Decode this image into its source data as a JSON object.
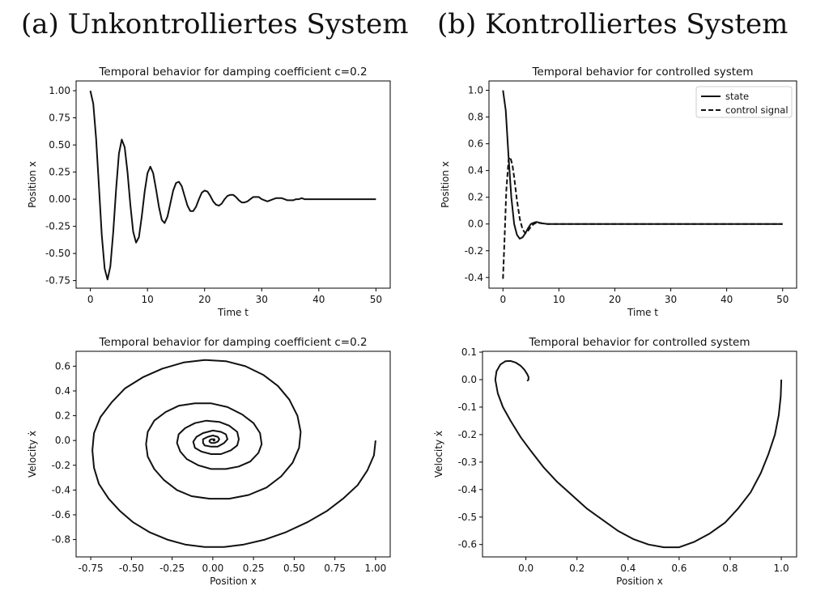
{
  "headings": {
    "left": "(a) Unkontrolliertes System",
    "right": "(b) Kontrolliertes System"
  },
  "colors": {
    "line": "#111111",
    "axis": "#000000",
    "background": "#ffffff"
  },
  "chart_data": [
    {
      "type": "line",
      "title": "Temporal behavior for  damping coefficient c=0.2",
      "xlabel": "Time t",
      "ylabel": "Position x",
      "xlim": [
        -2.5,
        52.5
      ],
      "ylim": [
        -0.82,
        1.09
      ],
      "xticks": [
        "0",
        "10",
        "20",
        "30",
        "40",
        "50"
      ],
      "yticks": [
        "-0.75",
        "-0.50",
        "-0.25",
        "0.00",
        "0.25",
        "0.50",
        "0.75",
        "1.00"
      ],
      "series": [
        {
          "style": "solid",
          "x": [
            0,
            0.5,
            1,
            1.5,
            2,
            2.5,
            3,
            3.5,
            4,
            4.5,
            5,
            5.5,
            6,
            6.5,
            7,
            7.5,
            8,
            8.5,
            9,
            9.5,
            10,
            10.5,
            11,
            11.5,
            12,
            12.5,
            13,
            13.5,
            14,
            14.5,
            15,
            15.5,
            16,
            16.5,
            17,
            17.5,
            18,
            18.5,
            19,
            19.5,
            20,
            20.5,
            21,
            21.5,
            22,
            22.5,
            23,
            23.5,
            24,
            24.5,
            25,
            25.5,
            26,
            26.5,
            27,
            27.5,
            28,
            28.5,
            29,
            29.5,
            30,
            30.5,
            31,
            31.5,
            32,
            32.5,
            33,
            33.5,
            34,
            34.5,
            35,
            35.5,
            36,
            36.5,
            37,
            37.5,
            38,
            38.5,
            39,
            39.5,
            40,
            40.5,
            41,
            41.5,
            42,
            42.5,
            43,
            43.5,
            44,
            44.5,
            45,
            45.5,
            46,
            46.5,
            47,
            47.5,
            48,
            48.5,
            49,
            49.5,
            50
          ],
          "y": [
            1.0,
            0.88,
            0.56,
            0.12,
            -0.33,
            -0.64,
            -0.74,
            -0.62,
            -0.3,
            0.09,
            0.42,
            0.55,
            0.48,
            0.25,
            -0.05,
            -0.3,
            -0.4,
            -0.35,
            -0.16,
            0.07,
            0.24,
            0.3,
            0.24,
            0.09,
            -0.07,
            -0.19,
            -0.22,
            -0.16,
            -0.04,
            0.08,
            0.15,
            0.16,
            0.12,
            0.03,
            -0.06,
            -0.11,
            -0.11,
            -0.07,
            0.0,
            0.06,
            0.08,
            0.07,
            0.03,
            -0.02,
            -0.05,
            -0.06,
            -0.04,
            0.0,
            0.03,
            0.04,
            0.04,
            0.02,
            -0.01,
            -0.03,
            -0.03,
            -0.02,
            0.0,
            0.02,
            0.02,
            0.02,
            0.0,
            -0.01,
            -0.02,
            -0.01,
            0.0,
            0.01,
            0.01,
            0.01,
            0.0,
            -0.01,
            -0.01,
            -0.01,
            0.0,
            0.0,
            0.01,
            0.0,
            0.0,
            0.0,
            0.0,
            0.0,
            0.0,
            0.0,
            0.0,
            0.0,
            0.0,
            0.0,
            0.0,
            0.0,
            0.0,
            0.0,
            0.0,
            0.0,
            0.0,
            0.0,
            0.0,
            0.0,
            0.0,
            0.0,
            0.0,
            0.0,
            0.0
          ]
        }
      ]
    },
    {
      "type": "line",
      "title": "Temporal behavior for controlled system",
      "xlabel": "Time t",
      "ylabel": "Position x",
      "xlim": [
        -2.5,
        52.5
      ],
      "ylim": [
        -0.48,
        1.07
      ],
      "xticks": [
        "0",
        "10",
        "20",
        "30",
        "40",
        "50"
      ],
      "yticks": [
        "-0.4",
        "-0.2",
        "0.0",
        "0.2",
        "0.4",
        "0.6",
        "0.8",
        "1.0"
      ],
      "legend": "top-right",
      "series": [
        {
          "name": "state",
          "style": "solid",
          "x": [
            0,
            0.5,
            1,
            1.5,
            2,
            2.5,
            3,
            3.5,
            4,
            4.5,
            5,
            5.5,
            6,
            6.5,
            7,
            8,
            9,
            10,
            15,
            20,
            30,
            40,
            50
          ],
          "y": [
            1.0,
            0.85,
            0.5,
            0.2,
            0.0,
            -0.08,
            -0.11,
            -0.1,
            -0.07,
            -0.03,
            0.0,
            0.01,
            0.015,
            0.01,
            0.005,
            0.0,
            0.0,
            0.0,
            0.0,
            0.0,
            0.0,
            0.0,
            0.0
          ]
        },
        {
          "name": "control signal",
          "style": "dashed",
          "x": [
            0,
            0.3,
            0.6,
            1,
            1.3,
            1.7,
            2,
            2.5,
            3,
            3.5,
            4,
            4.5,
            5,
            5.5,
            6,
            7,
            8,
            9,
            10,
            15,
            20,
            30,
            40,
            50
          ],
          "y": [
            -0.41,
            -0.1,
            0.25,
            0.48,
            0.5,
            0.44,
            0.35,
            0.18,
            0.04,
            -0.04,
            -0.07,
            -0.05,
            -0.02,
            0.0,
            0.01,
            0.005,
            0.0,
            0.0,
            0.0,
            0.0,
            0.0,
            0.0,
            0.0,
            0.0
          ]
        }
      ]
    },
    {
      "type": "line",
      "title": "Temporal behavior for  damping coefficient c=0.2",
      "xlabel": "Position x",
      "ylabel": "Velocity ẋ",
      "xlim": [
        -0.84,
        1.09
      ],
      "ylim": [
        -0.94,
        0.72
      ],
      "xticks": [
        "-0.75",
        "-0.50",
        "-0.25",
        "0.00",
        "0.25",
        "0.50",
        "0.75",
        "1.00"
      ],
      "yticks": [
        "-0.8",
        "-0.6",
        "-0.4",
        "-0.2",
        "0.0",
        "0.2",
        "0.4",
        "0.6"
      ],
      "series": [
        {
          "style": "solid",
          "x": [
            1.0,
            0.99,
            0.95,
            0.89,
            0.8,
            0.7,
            0.58,
            0.45,
            0.32,
            0.19,
            0.07,
            -0.05,
            -0.17,
            -0.28,
            -0.39,
            -0.49,
            -0.57,
            -0.64,
            -0.7,
            -0.73,
            -0.74,
            -0.73,
            -0.69,
            -0.62,
            -0.54,
            -0.43,
            -0.31,
            -0.18,
            -0.05,
            0.08,
            0.2,
            0.31,
            0.4,
            0.47,
            0.52,
            0.54,
            0.53,
            0.49,
            0.42,
            0.33,
            0.22,
            0.1,
            -0.02,
            -0.13,
            -0.22,
            -0.3,
            -0.36,
            -0.4,
            -0.41,
            -0.4,
            -0.36,
            -0.29,
            -0.21,
            -0.11,
            -0.01,
            0.09,
            0.18,
            0.25,
            0.29,
            0.3,
            0.28,
            0.23,
            0.16,
            0.08,
            -0.01,
            -0.09,
            -0.16,
            -0.2,
            -0.22,
            -0.21,
            -0.17,
            -0.11,
            -0.04,
            0.04,
            0.1,
            0.15,
            0.16,
            0.15,
            0.11,
            0.05,
            -0.01,
            -0.07,
            -0.11,
            -0.12,
            -0.1,
            -0.06,
            0.0,
            0.05,
            0.08,
            0.09,
            0.07,
            0.03,
            -0.01,
            -0.05,
            -0.06,
            -0.06,
            -0.03,
            0.0,
            0.03,
            0.04,
            0.03,
            0.01,
            -0.01,
            -0.02,
            -0.02,
            -0.01,
            0.0,
            0.01,
            0.01,
            0.0
          ],
          "y": [
            0.0,
            -0.12,
            -0.24,
            -0.36,
            -0.47,
            -0.57,
            -0.66,
            -0.74,
            -0.8,
            -0.84,
            -0.86,
            -0.86,
            -0.84,
            -0.8,
            -0.74,
            -0.66,
            -0.57,
            -0.47,
            -0.35,
            -0.22,
            -0.08,
            0.06,
            0.19,
            0.31,
            0.42,
            0.51,
            0.58,
            0.63,
            0.65,
            0.64,
            0.6,
            0.53,
            0.44,
            0.33,
            0.2,
            0.07,
            -0.06,
            -0.18,
            -0.29,
            -0.38,
            -0.44,
            -0.47,
            -0.47,
            -0.45,
            -0.4,
            -0.32,
            -0.23,
            -0.13,
            -0.03,
            0.07,
            0.16,
            0.23,
            0.28,
            0.3,
            0.3,
            0.27,
            0.21,
            0.14,
            0.06,
            -0.03,
            -0.1,
            -0.17,
            -0.21,
            -0.23,
            -0.23,
            -0.2,
            -0.15,
            -0.09,
            -0.02,
            0.05,
            0.1,
            0.14,
            0.16,
            0.15,
            0.12,
            0.07,
            0.01,
            -0.04,
            -0.08,
            -0.11,
            -0.11,
            -0.09,
            -0.06,
            -0.01,
            0.03,
            0.06,
            0.08,
            0.07,
            0.05,
            0.01,
            -0.02,
            -0.05,
            -0.05,
            -0.04,
            -0.02,
            0.01,
            0.03,
            0.04,
            0.03,
            0.01,
            -0.01,
            -0.02,
            -0.02,
            -0.01,
            0.0,
            0.01,
            0.01,
            0.01,
            0.0,
            0.0
          ]
        }
      ]
    },
    {
      "type": "line",
      "title": "Temporal behavior for controlled system",
      "xlabel": "Position x",
      "ylabel": "Velocity ẋ",
      "xlim": [
        -0.17,
        1.06
      ],
      "ylim": [
        -0.645,
        0.103
      ],
      "xticks": [
        "0.0",
        "0.2",
        "0.4",
        "0.6",
        "0.8",
        "1.0"
      ],
      "yticks": [
        "-0.6",
        "-0.5",
        "-0.4",
        "-0.3",
        "-0.2",
        "-0.1",
        "0.0",
        "0.1"
      ],
      "series": [
        {
          "style": "solid",
          "x": [
            1.0,
            0.998,
            0.99,
            0.975,
            0.95,
            0.92,
            0.88,
            0.83,
            0.78,
            0.72,
            0.66,
            0.6,
            0.54,
            0.48,
            0.42,
            0.36,
            0.3,
            0.24,
            0.18,
            0.12,
            0.07,
            0.02,
            -0.02,
            -0.06,
            -0.09,
            -0.11,
            -0.12,
            -0.115,
            -0.1,
            -0.08,
            -0.06,
            -0.04,
            -0.02,
            -0.005,
            0.005,
            0.01,
            0.01,
            0.005
          ],
          "y": [
            0.0,
            -0.06,
            -0.13,
            -0.2,
            -0.27,
            -0.34,
            -0.41,
            -0.47,
            -0.52,
            -0.56,
            -0.59,
            -0.61,
            -0.61,
            -0.6,
            -0.58,
            -0.55,
            -0.51,
            -0.47,
            -0.42,
            -0.37,
            -0.32,
            -0.26,
            -0.21,
            -0.15,
            -0.1,
            -0.05,
            0.0,
            0.03,
            0.055,
            0.067,
            0.068,
            0.062,
            0.05,
            0.035,
            0.02,
            0.01,
            0.0,
            -0.005
          ]
        }
      ]
    }
  ]
}
